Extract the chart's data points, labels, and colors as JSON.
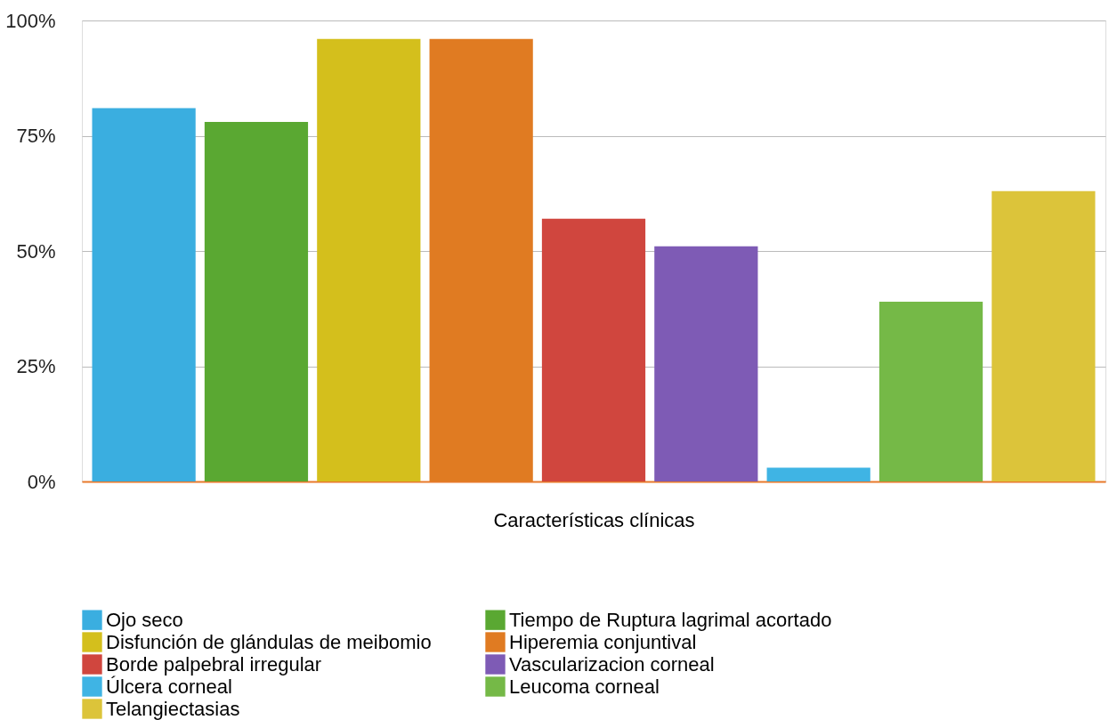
{
  "chart_data": {
    "type": "bar",
    "xlabel": "Características clínicas",
    "categories": [
      null
    ],
    "ylim": [
      0,
      100
    ],
    "yticks": [
      {
        "value": 0,
        "label": "0%"
      },
      {
        "value": 25,
        "label": "25%"
      },
      {
        "value": 50,
        "label": "50%"
      },
      {
        "value": 75,
        "label": "75%"
      },
      {
        "value": 100,
        "label": "100%"
      }
    ],
    "grid": "y",
    "legend": "bottom",
    "series": [
      {
        "name": "Ojo seco",
        "color": "#3aaee0",
        "values": [
          81
        ]
      },
      {
        "name": "Tiempo de Ruptura lagrimal acortado",
        "color": "#5aa832",
        "values": [
          78
        ]
      },
      {
        "name": "Disfunción de glándulas de meibomio",
        "color": "#d4bf1c",
        "values": [
          96
        ]
      },
      {
        "name": "Hiperemia conjuntival",
        "color": "#e07b22",
        "values": [
          96
        ]
      },
      {
        "name": "Borde palpebral irregular",
        "color": "#d0463e",
        "values": [
          57
        ]
      },
      {
        "name": "Vascularizacion corneal",
        "color": "#7e5bb5",
        "values": [
          51
        ]
      },
      {
        "name": "Úlcera corneal",
        "color": "#3fb4e4",
        "values": [
          3
        ]
      },
      {
        "name": "Leucoma corneal",
        "color": "#75b947",
        "values": [
          39
        ]
      },
      {
        "name": "Telangiectasias",
        "color": "#dcc43a",
        "values": [
          63
        ]
      }
    ]
  }
}
